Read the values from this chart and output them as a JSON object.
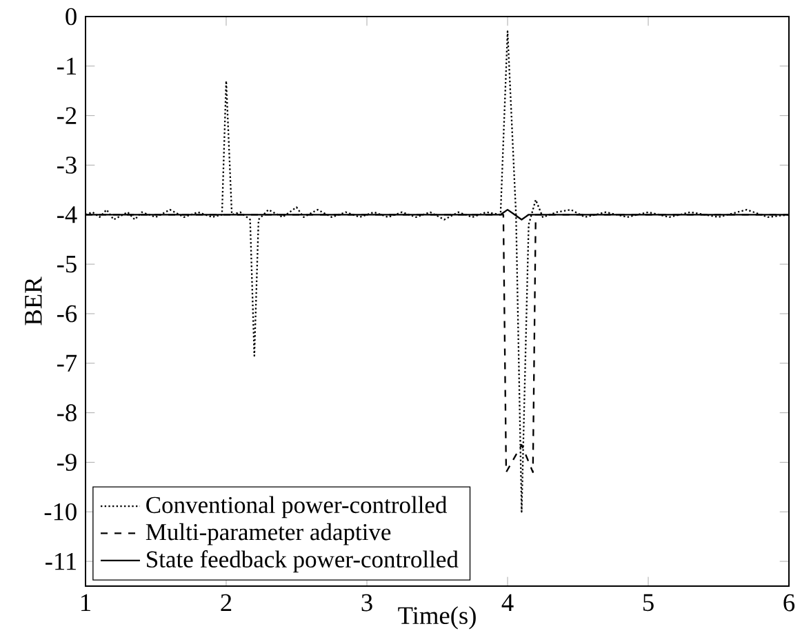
{
  "chart_data": {
    "type": "line",
    "xlabel": "Time(s)",
    "ylabel": "BER",
    "xlim": [
      1,
      6
    ],
    "ylim": [
      -11.5,
      0
    ],
    "xticks": [
      1,
      2,
      3,
      4,
      5,
      6
    ],
    "yticks": [
      0,
      -1,
      -2,
      -3,
      -4,
      -5,
      -6,
      -7,
      -8,
      -9,
      -10,
      -11
    ],
    "grid": false,
    "legend": "bottom left",
    "marker": "none",
    "series": [
      {
        "name": "Conventional power-controlled",
        "color": "#000000",
        "line_style": "dotted",
        "x": [
          1.0,
          1.05,
          1.1,
          1.15,
          1.2,
          1.3,
          1.35,
          1.4,
          1.5,
          1.6,
          1.7,
          1.8,
          1.9,
          1.97,
          2.0,
          2.04,
          2.1,
          2.17,
          2.2,
          2.23,
          2.3,
          2.4,
          2.5,
          2.55,
          2.65,
          2.75,
          2.85,
          2.95,
          3.05,
          3.15,
          3.25,
          3.35,
          3.45,
          3.55,
          3.65,
          3.75,
          3.85,
          3.95,
          4.0,
          4.06,
          4.1,
          4.15,
          4.2,
          4.25,
          4.35,
          4.45,
          4.55,
          4.7,
          4.85,
          5.0,
          5.15,
          5.3,
          5.5,
          5.7,
          5.85,
          6.0
        ],
        "values": [
          -4.0,
          -3.95,
          -4.05,
          -3.9,
          -4.1,
          -3.95,
          -4.1,
          -3.95,
          -4.05,
          -3.9,
          -4.05,
          -3.95,
          -4.05,
          -4.0,
          -1.3,
          -4.0,
          -3.95,
          -4.1,
          -6.85,
          -4.1,
          -3.9,
          -4.05,
          -3.85,
          -4.05,
          -3.9,
          -4.05,
          -3.95,
          -4.05,
          -3.95,
          -4.05,
          -3.95,
          -4.05,
          -3.95,
          -4.1,
          -3.95,
          -4.05,
          -3.95,
          -4.0,
          -0.3,
          -4.0,
          -10.0,
          -4.2,
          -3.7,
          -4.05,
          -3.95,
          -3.9,
          -4.05,
          -3.95,
          -4.05,
          -3.95,
          -4.05,
          -3.95,
          -4.05,
          -3.9,
          -4.05,
          -4.0
        ]
      },
      {
        "name": "Multi-parameter adaptive",
        "color": "#000000",
        "line_style": "dashed",
        "x": [
          1.0,
          3.97,
          3.99,
          4.1,
          4.18,
          4.2,
          6.0
        ],
        "values": [
          -4.0,
          -4.0,
          -9.2,
          -8.65,
          -9.2,
          -4.0,
          -4.0
        ]
      },
      {
        "name": "State feedback power-controlled",
        "color": "#000000",
        "line_style": "solid",
        "x": [
          1.0,
          3.95,
          4.0,
          4.05,
          4.1,
          4.15,
          6.0
        ],
        "values": [
          -4.0,
          -4.0,
          -3.9,
          -4.0,
          -4.1,
          -4.0,
          -4.0
        ]
      }
    ]
  }
}
